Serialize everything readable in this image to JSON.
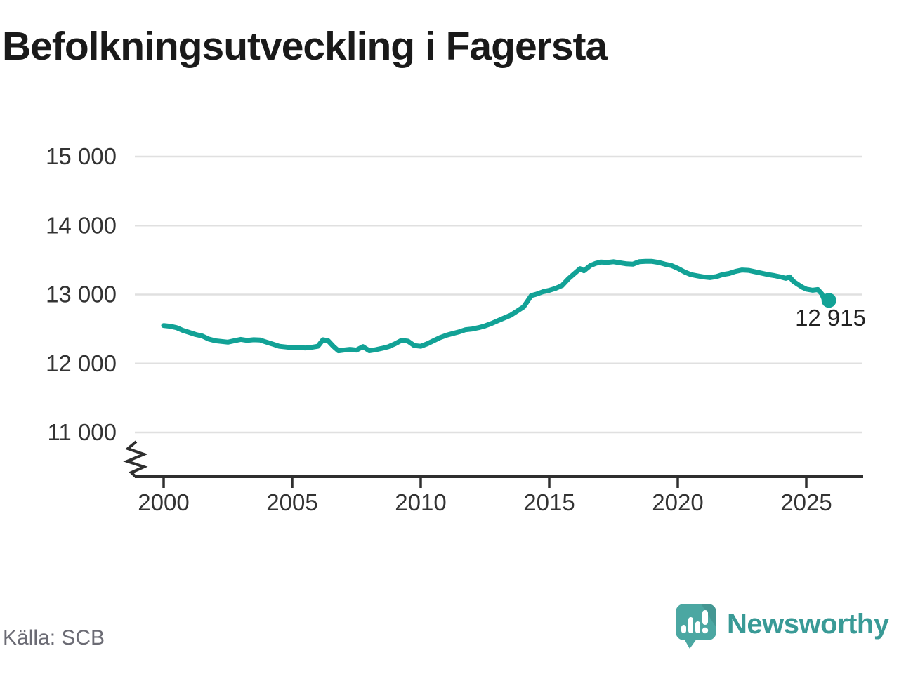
{
  "title": "Befolkningsutveckling i Fagersta",
  "footer": {
    "source": "Källa: SCB",
    "brand_name": "Newsworthy"
  },
  "colors": {
    "line": "#12a296",
    "dot": "#12a296",
    "grid": "#e0e0e0",
    "axis": "#2f2f2f",
    "tick_label": "#333333",
    "annotation": "#222222",
    "title": "#1a1a1a",
    "source": "#6b6b74",
    "brand_teal": "#4ba7a2",
    "brand_text": "#399a96"
  },
  "chart_data": {
    "type": "line",
    "title": "Befolkningsutveckling i Fagersta",
    "xlabel": "",
    "ylabel": "",
    "grid": true,
    "legend_position": "none",
    "axis_break": true,
    "xlim": [
      1998.9,
      2027.3
    ],
    "ylim_shown": [
      11000,
      15000
    ],
    "x_ticks": [
      {
        "value": 2000,
        "label": "2000"
      },
      {
        "value": 2005,
        "label": "2005"
      },
      {
        "value": 2010,
        "label": "2010"
      },
      {
        "value": 2015,
        "label": "2015"
      },
      {
        "value": 2020,
        "label": "2020"
      },
      {
        "value": 2025,
        "label": "2025"
      }
    ],
    "y_ticks": [
      {
        "value": 11000,
        "label": "11 000"
      },
      {
        "value": 12000,
        "label": "12 000"
      },
      {
        "value": 13000,
        "label": "13 000"
      },
      {
        "value": 14000,
        "label": "14 000"
      },
      {
        "value": 15000,
        "label": "15 000"
      }
    ],
    "last_value_label": "12 915",
    "last_value": 12915,
    "series": [
      {
        "name": "Befolkning i Fagersta",
        "points": [
          [
            2000.0,
            12550
          ],
          [
            2000.25,
            12540
          ],
          [
            2000.5,
            12520
          ],
          [
            2000.75,
            12480
          ],
          [
            2001.0,
            12450
          ],
          [
            2001.25,
            12420
          ],
          [
            2001.5,
            12400
          ],
          [
            2001.75,
            12355
          ],
          [
            2002.0,
            12330
          ],
          [
            2002.25,
            12320
          ],
          [
            2002.5,
            12310
          ],
          [
            2002.75,
            12330
          ],
          [
            2003.0,
            12350
          ],
          [
            2003.25,
            12335
          ],
          [
            2003.5,
            12345
          ],
          [
            2003.75,
            12340
          ],
          [
            2004.0,
            12310
          ],
          [
            2004.25,
            12280
          ],
          [
            2004.5,
            12250
          ],
          [
            2004.75,
            12240
          ],
          [
            2005.0,
            12230
          ],
          [
            2005.25,
            12235
          ],
          [
            2005.5,
            12225
          ],
          [
            2005.75,
            12235
          ],
          [
            2006.0,
            12250
          ],
          [
            2006.2,
            12345
          ],
          [
            2006.4,
            12330
          ],
          [
            2006.6,
            12250
          ],
          [
            2006.8,
            12185
          ],
          [
            2007.0,
            12195
          ],
          [
            2007.25,
            12205
          ],
          [
            2007.5,
            12195
          ],
          [
            2007.75,
            12245
          ],
          [
            2008.0,
            12185
          ],
          [
            2008.25,
            12200
          ],
          [
            2008.5,
            12220
          ],
          [
            2008.75,
            12245
          ],
          [
            2009.0,
            12285
          ],
          [
            2009.25,
            12335
          ],
          [
            2009.5,
            12325
          ],
          [
            2009.75,
            12260
          ],
          [
            2010.0,
            12250
          ],
          [
            2010.25,
            12285
          ],
          [
            2010.5,
            12330
          ],
          [
            2010.75,
            12375
          ],
          [
            2011.0,
            12410
          ],
          [
            2011.25,
            12435
          ],
          [
            2011.5,
            12460
          ],
          [
            2011.75,
            12490
          ],
          [
            2012.0,
            12500
          ],
          [
            2012.25,
            12520
          ],
          [
            2012.5,
            12545
          ],
          [
            2012.75,
            12580
          ],
          [
            2013.0,
            12620
          ],
          [
            2013.25,
            12660
          ],
          [
            2013.5,
            12700
          ],
          [
            2013.75,
            12760
          ],
          [
            2014.0,
            12820
          ],
          [
            2014.15,
            12900
          ],
          [
            2014.3,
            12985
          ],
          [
            2014.5,
            13005
          ],
          [
            2014.75,
            13040
          ],
          [
            2015.0,
            13060
          ],
          [
            2015.25,
            13090
          ],
          [
            2015.5,
            13130
          ],
          [
            2015.75,
            13230
          ],
          [
            2016.0,
            13310
          ],
          [
            2016.2,
            13375
          ],
          [
            2016.35,
            13345
          ],
          [
            2016.6,
            13420
          ],
          [
            2016.8,
            13450
          ],
          [
            2017.0,
            13470
          ],
          [
            2017.25,
            13465
          ],
          [
            2017.5,
            13475
          ],
          [
            2017.75,
            13460
          ],
          [
            2018.0,
            13445
          ],
          [
            2018.25,
            13440
          ],
          [
            2018.5,
            13475
          ],
          [
            2018.75,
            13480
          ],
          [
            2019.0,
            13480
          ],
          [
            2019.25,
            13465
          ],
          [
            2019.5,
            13440
          ],
          [
            2019.75,
            13420
          ],
          [
            2020.0,
            13380
          ],
          [
            2020.25,
            13330
          ],
          [
            2020.5,
            13290
          ],
          [
            2020.75,
            13272
          ],
          [
            2021.0,
            13255
          ],
          [
            2021.25,
            13245
          ],
          [
            2021.5,
            13260
          ],
          [
            2021.75,
            13290
          ],
          [
            2022.0,
            13305
          ],
          [
            2022.25,
            13335
          ],
          [
            2022.5,
            13355
          ],
          [
            2022.75,
            13350
          ],
          [
            2023.0,
            13330
          ],
          [
            2023.25,
            13310
          ],
          [
            2023.5,
            13290
          ],
          [
            2023.75,
            13275
          ],
          [
            2024.0,
            13255
          ],
          [
            2024.2,
            13235
          ],
          [
            2024.35,
            13255
          ],
          [
            2024.5,
            13190
          ],
          [
            2024.7,
            13140
          ],
          [
            2024.85,
            13105
          ],
          [
            2025.0,
            13078
          ],
          [
            2025.25,
            13062
          ],
          [
            2025.45,
            13072
          ],
          [
            2025.6,
            13010
          ],
          [
            2025.75,
            12880
          ],
          [
            2025.88,
            12915
          ]
        ]
      }
    ]
  }
}
